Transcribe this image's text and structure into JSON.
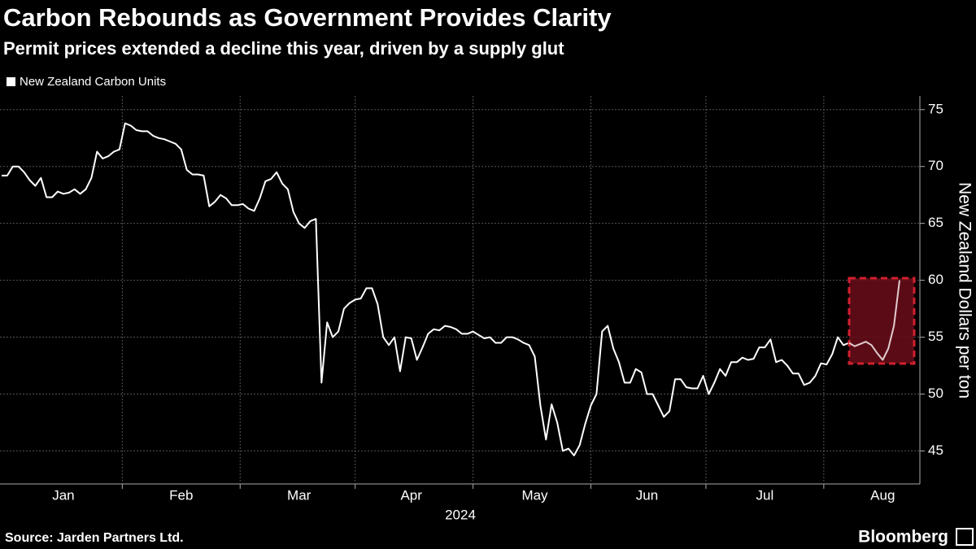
{
  "chart_data": {
    "type": "line",
    "title": "Carbon Rebounds as Government Provides Clarity",
    "subtitle": "Permit prices extended a decline this year, driven by a supply glut",
    "y_label": "New Zealand Dollars per ton",
    "year_label": "2024",
    "source": "Source: Jarden Partners Ltd.",
    "brand": "Bloomberg",
    "ylim": [
      42.1,
      76.2
    ],
    "yticks": [
      45,
      50,
      55,
      60,
      65,
      70,
      75
    ],
    "grid": true,
    "categories": [
      null,
      null,
      null,
      null,
      null,
      null,
      null,
      null,
      null,
      null,
      null,
      "Jan",
      null,
      null,
      null,
      null,
      null,
      null,
      null,
      null,
      null,
      null,
      null,
      null,
      null,
      null,
      null,
      null,
      null,
      null,
      null,
      null,
      "Feb",
      null,
      null,
      null,
      null,
      null,
      null,
      null,
      null,
      null,
      null,
      null,
      null,
      null,
      null,
      null,
      null,
      null,
      null,
      null,
      null,
      "Mar",
      null,
      null,
      null,
      null,
      null,
      null,
      null,
      null,
      null,
      null,
      null,
      null,
      null,
      null,
      null,
      null,
      null,
      null,
      null,
      "Apr",
      null,
      null,
      null,
      null,
      null,
      null,
      null,
      null,
      null,
      null,
      null,
      null,
      null,
      null,
      null,
      null,
      null,
      null,
      null,
      null,
      null,
      "May",
      null,
      null,
      null,
      null,
      null,
      null,
      null,
      null,
      null,
      null,
      null,
      null,
      null,
      null,
      null,
      null,
      null,
      null,
      null,
      "Jun",
      null,
      null,
      null,
      null,
      null,
      null,
      null,
      null,
      null,
      null,
      null,
      null,
      null,
      null,
      null,
      null,
      null,
      null,
      null,
      null,
      "Jul",
      null,
      null,
      null,
      null,
      null,
      null,
      null,
      null,
      null,
      null,
      null,
      null,
      null,
      null,
      null,
      null,
      null,
      null,
      null,
      null,
      "Aug",
      null,
      null,
      null
    ],
    "series": [
      {
        "name": "New Zealand Carbon Units",
        "color": "#ffffff",
        "values": [
          69.2,
          69.2,
          70,
          70,
          69.5,
          68.8,
          68.3,
          69,
          67.3,
          67.3,
          67.8,
          67.6,
          67.7,
          68,
          67.6,
          68,
          69,
          71.3,
          70.7,
          70.9,
          71.3,
          71.5,
          73.8,
          73.6,
          73.2,
          73.1,
          73.1,
          72.7,
          72.5,
          72.4,
          72.2,
          72,
          71.5,
          69.7,
          69.3,
          69.3,
          69.2,
          66.5,
          66.9,
          67.5,
          67.2,
          66.6,
          66.6,
          66.7,
          66.3,
          66.1,
          67.2,
          68.7,
          68.9,
          69.5,
          68.5,
          68,
          66,
          65,
          64.6,
          65.2,
          65.4,
          51,
          56.3,
          55,
          55.5,
          57.5,
          58,
          58.3,
          58.4,
          59.3,
          59.3,
          57.9,
          55,
          54.3,
          55,
          52,
          55,
          54.9,
          53,
          54.1,
          55.3,
          55.7,
          55.6,
          56,
          55.9,
          55.7,
          55.3,
          55.3,
          55.5,
          55.2,
          54.9,
          55,
          54.5,
          54.5,
          55,
          55,
          54.8,
          54.5,
          54.3,
          53.3,
          49,
          46,
          49.1,
          47.5,
          45,
          45.2,
          44.6,
          45.5,
          47.4,
          49,
          50,
          55.5,
          56,
          54,
          52.8,
          51,
          51,
          52.2,
          51.9,
          50,
          50,
          49,
          48,
          48.5,
          51.3,
          51.3,
          50.6,
          50.5,
          50.5,
          51.6,
          50,
          51,
          52.2,
          51.6,
          52.8,
          52.8,
          53.2,
          53,
          53.1,
          54.1,
          54.1,
          54.8,
          52.8,
          53,
          52.5,
          51.8,
          51.8,
          50.8,
          51,
          51.6,
          52.7,
          52.6,
          53.5,
          55,
          54.3,
          54.5,
          54.2,
          54.4,
          54.6,
          54.3,
          53.6,
          53,
          54,
          56,
          60
        ]
      }
    ]
  }
}
